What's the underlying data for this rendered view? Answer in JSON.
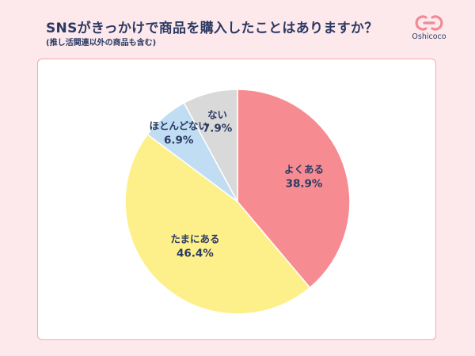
{
  "header": {
    "title": "SNSがきっかけで商品を購入したことはありますか？",
    "subtitle": "(推し活関連以外の商品も含む)"
  },
  "logo": {
    "text": "Oshicoco",
    "icon": "oshicoco-logo-icon",
    "color": "#f08a96"
  },
  "chart_data": {
    "type": "pie",
    "categories": [
      "よくある",
      "たまにある",
      "ほとんどない",
      "ない"
    ],
    "values": [
      38.9,
      46.4,
      6.9,
      7.9
    ],
    "value_labels": [
      "38.9%",
      "46.4%",
      "6.9%",
      "7.9%"
    ],
    "colors": [
      "#f68c91",
      "#fdf08a",
      "#c0ddf3",
      "#d9d9d9"
    ],
    "start": "12 o'clock",
    "direction": "clockwise",
    "title": ""
  }
}
